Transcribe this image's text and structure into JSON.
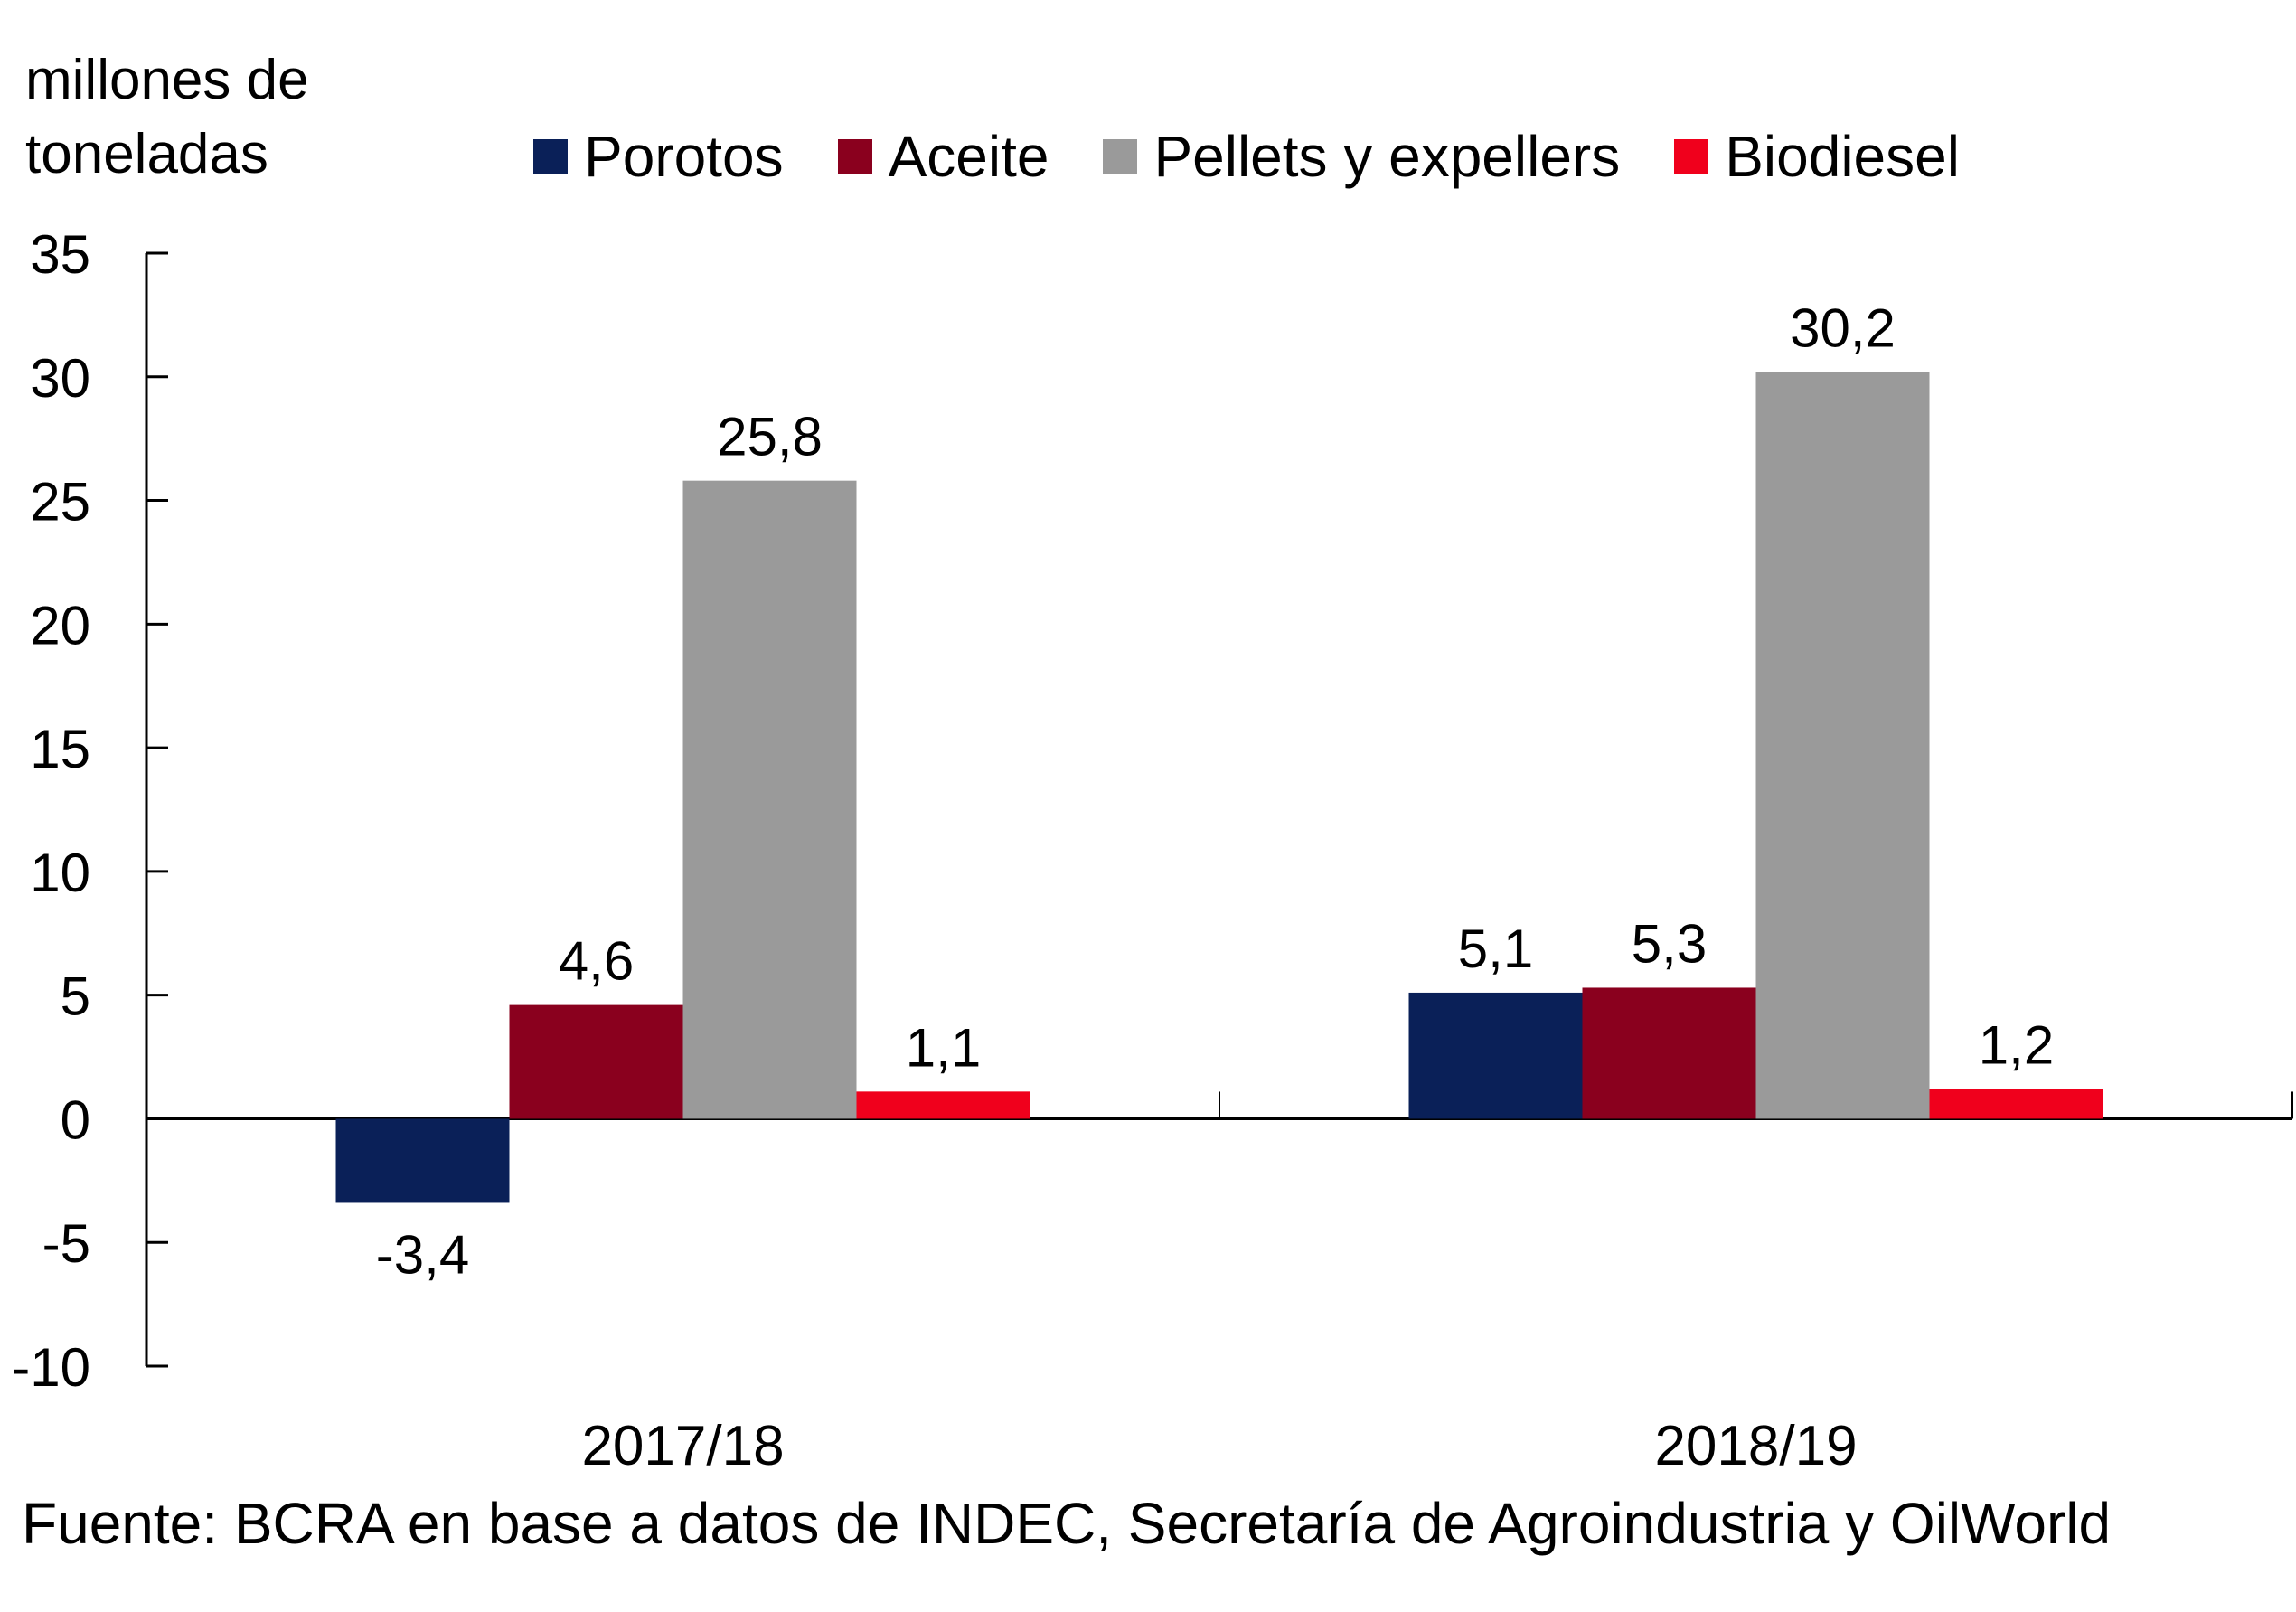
{
  "chart_data": {
    "type": "bar",
    "title": "",
    "ylabel": "millones de\ntoneladas",
    "xlabel": "",
    "categories": [
      "2017/18",
      "2018/19"
    ],
    "series": [
      {
        "name": "Porotos",
        "color": "#0a2058",
        "values": [
          -3.4,
          5.1
        ],
        "labels": [
          "-3,4",
          "5,1"
        ]
      },
      {
        "name": "Aceite",
        "color": "#8a001e",
        "values": [
          4.6,
          5.3
        ],
        "labels": [
          "4,6",
          "5,3"
        ]
      },
      {
        "name": "Pellets y expellers",
        "color": "#9a9a9a",
        "values": [
          25.8,
          30.2
        ],
        "labels": [
          "25,8",
          "30,2"
        ]
      },
      {
        "name": "Biodiesel",
        "color": "#f0001c",
        "values": [
          1.1,
          1.2
        ],
        "labels": [
          "1,1",
          "1,2"
        ]
      }
    ],
    "ylim": [
      -10,
      35
    ],
    "yticks": [
      35,
      30,
      25,
      20,
      15,
      10,
      5,
      0,
      -5,
      -10
    ],
    "ytick_labels": [
      "35",
      "30",
      "25",
      "20",
      "15",
      "10",
      "5",
      "0",
      "-5",
      "-10"
    ],
    "grid": false,
    "legend_position": "top",
    "source": "Fuente: BCRA en base a datos de INDEC, Secretaría de Agroindustria y OilWorld"
  }
}
